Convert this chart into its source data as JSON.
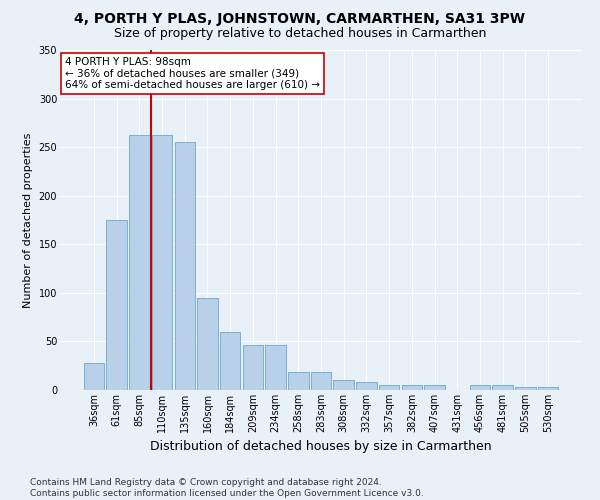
{
  "title1": "4, PORTH Y PLAS, JOHNSTOWN, CARMARTHEN, SA31 3PW",
  "title2": "Size of property relative to detached houses in Carmarthen",
  "xlabel": "Distribution of detached houses by size in Carmarthen",
  "ylabel": "Number of detached properties",
  "bin_labels": [
    "36sqm",
    "61sqm",
    "85sqm",
    "110sqm",
    "135sqm",
    "160sqm",
    "184sqm",
    "209sqm",
    "234sqm",
    "258sqm",
    "283sqm",
    "308sqm",
    "332sqm",
    "357sqm",
    "382sqm",
    "407sqm",
    "431sqm",
    "456sqm",
    "481sqm",
    "505sqm",
    "530sqm"
  ],
  "bar_values": [
    28,
    175,
    263,
    263,
    255,
    95,
    60,
    46,
    46,
    19,
    19,
    10,
    8,
    5,
    5,
    5,
    0,
    5,
    5,
    3,
    3
  ],
  "bar_color": "#b8d0e8",
  "bar_edge_color": "#6fa8d0",
  "vline_color": "#cc0000",
  "annotation_text": "4 PORTH Y PLAS: 98sqm\n← 36% of detached houses are smaller (349)\n64% of semi-detached houses are larger (610) →",
  "annotation_box_color": "white",
  "annotation_box_edge": "#cc0000",
  "ylim": [
    0,
    350
  ],
  "yticks": [
    0,
    50,
    100,
    150,
    200,
    250,
    300,
    350
  ],
  "footer": "Contains HM Land Registry data © Crown copyright and database right 2024.\nContains public sector information licensed under the Open Government Licence v3.0.",
  "bg_color": "#e8f0f8",
  "plot_bg_color": "#e8f0f8",
  "grid_color": "#ffffff",
  "title1_fontsize": 10,
  "title2_fontsize": 9,
  "xlabel_fontsize": 9,
  "ylabel_fontsize": 8,
  "tick_fontsize": 7,
  "footer_fontsize": 6.5
}
